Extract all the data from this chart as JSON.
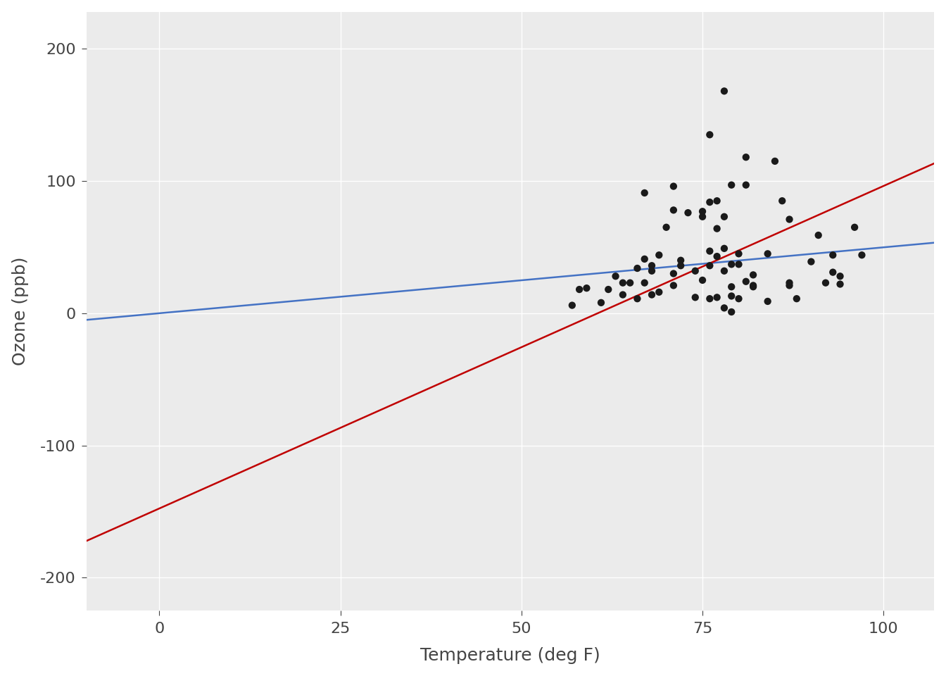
{
  "scatter_x": [
    67,
    72,
    74,
    62,
    65,
    59,
    61,
    69,
    66,
    68,
    58,
    64,
    66,
    57,
    71,
    80,
    79,
    76,
    78,
    74,
    67,
    84,
    85,
    79,
    82,
    87,
    90,
    87,
    82,
    80,
    79,
    77,
    79,
    76,
    78,
    78,
    77,
    72,
    75,
    79,
    81,
    86,
    88,
    97,
    94,
    96,
    94,
    91,
    92,
    93,
    93,
    87,
    84,
    80,
    78,
    75,
    73,
    81,
    76,
    77,
    71,
    71,
    78,
    67,
    76,
    68,
    82,
    64,
    71,
    81,
    69,
    63,
    70,
    77,
    75,
    76,
    68
  ],
  "scatter_y": [
    41,
    36,
    12,
    18,
    23,
    19,
    8,
    16,
    11,
    14,
    18,
    14,
    34,
    6,
    30,
    11,
    1,
    11,
    4,
    32,
    23,
    45,
    115,
    37,
    29,
    71,
    39,
    23,
    21,
    37,
    20,
    12,
    13,
    135,
    49,
    32,
    64,
    40,
    77,
    97,
    97,
    85,
    11,
    44,
    28,
    65,
    22,
    59,
    23,
    31,
    44,
    21,
    9,
    45,
    168,
    73,
    76,
    118,
    84,
    85,
    96,
    78,
    73,
    91,
    47,
    32,
    20,
    23,
    21,
    24,
    44,
    28,
    65,
    43,
    25,
    36,
    36
  ],
  "blue_intercept": 0.0,
  "blue_slope": 0.4985,
  "red_intercept": -147.646,
  "red_slope": 2.4391,
  "x_min": -10,
  "x_max": 107,
  "y_min": -225,
  "y_max": 228,
  "xlabel": "Temperature (deg F)",
  "ylabel": "Ozone (ppb)",
  "panel_bg_color": "#ebebeb",
  "fig_bg_color": "#ffffff",
  "grid_color": "#ffffff",
  "blue_color": "#4472C4",
  "red_color": "#C00000",
  "scatter_color": "#1a1a1a",
  "scatter_size": 55,
  "line_width": 1.8,
  "xticks": [
    0,
    25,
    50,
    75,
    100
  ],
  "yticks": [
    -200,
    -100,
    0,
    100,
    200
  ],
  "tick_label_color": "#444444",
  "tick_label_size": 16,
  "axis_label_size": 18
}
